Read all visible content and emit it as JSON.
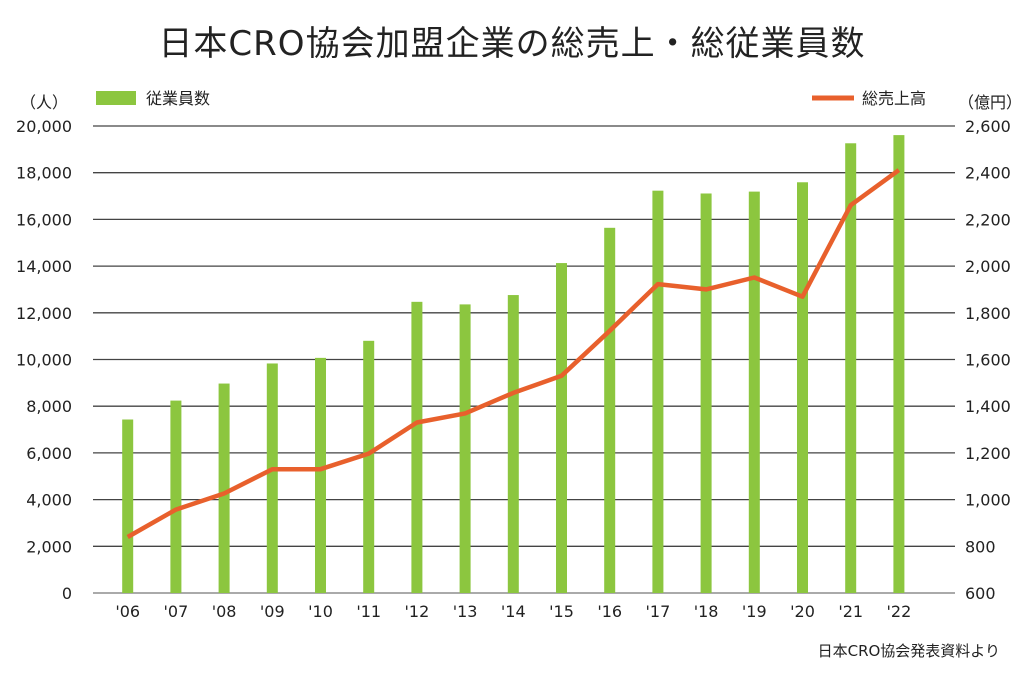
{
  "chart_data": {
    "type": "bar+line",
    "title": "日本CRO協会加盟企業の総売上・総従業員数",
    "source": "日本CRO協会発表資料より",
    "categories": [
      "'06",
      "'07",
      "'08",
      "'09",
      "'10",
      "'11",
      "'12",
      "'13",
      "'14",
      "'15",
      "'16",
      "'17",
      "'18",
      "'19",
      "'20",
      "'21",
      "'22"
    ],
    "left_axis": {
      "unit": "（人）",
      "ylim": [
        0,
        20000
      ],
      "ticks": [
        "0",
        "2,000",
        "4,000",
        "6,000",
        "8,000",
        "10,000",
        "12,000",
        "14,000",
        "16,000",
        "18,000",
        "20,000"
      ]
    },
    "right_axis": {
      "unit": "（億円）",
      "ylim": [
        600,
        2600
      ],
      "ticks": [
        "600",
        "800",
        "1,000",
        "1,200",
        "1,400",
        "1,600",
        "1,800",
        "2,000",
        "2,200",
        "2,400",
        "2,600"
      ]
    },
    "grid": true,
    "series": [
      {
        "name": "従業員数",
        "type": "bar",
        "axis": "left",
        "color": "#8cc63f",
        "values": [
          7430,
          8240,
          8970,
          9830,
          10070,
          10800,
          12470,
          12360,
          12760,
          14130,
          15640,
          17230,
          17110,
          17190,
          17590,
          19260,
          19610
        ]
      },
      {
        "name": "総売上高",
        "type": "line",
        "axis": "right",
        "color": "#e8602c",
        "values": [
          840,
          957,
          1026,
          1130,
          1130,
          1197,
          1330,
          1369,
          1457,
          1530,
          1723,
          1923,
          1900,
          1951,
          1869,
          2261,
          2411
        ]
      }
    ],
    "legend": {
      "bar_position": "top-left",
      "line_position": "top-right"
    }
  }
}
